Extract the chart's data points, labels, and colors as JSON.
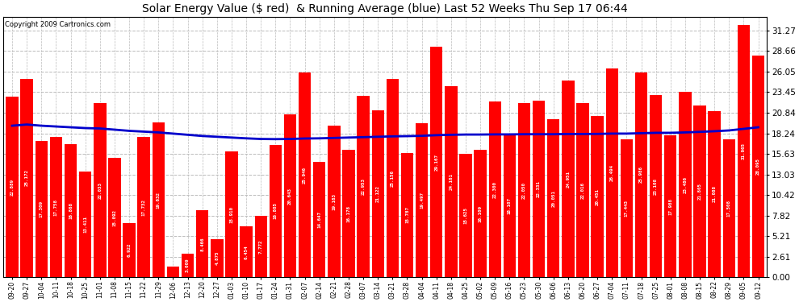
{
  "title": "Solar Energy Value ($ red)  & Running Average (blue) Last 52 Weeks Thu Sep 17 06:44",
  "copyright": "Copyright 2009 Cartronics.com",
  "bar_color": "#ff0000",
  "avg_line_color": "#0000cc",
  "background_color": "#ffffff",
  "plot_bg_color": "#ffffff",
  "grid_color": "#bbbbbb",
  "yticks": [
    0.0,
    2.61,
    5.21,
    7.82,
    10.42,
    13.03,
    15.63,
    18.24,
    20.84,
    23.45,
    26.05,
    28.66,
    31.27
  ],
  "xlabels": [
    "09-20",
    "09-27",
    "10-04",
    "10-11",
    "10-18",
    "10-25",
    "11-01",
    "11-08",
    "11-15",
    "11-22",
    "11-29",
    "12-06",
    "12-13",
    "12-20",
    "12-27",
    "01-03",
    "01-10",
    "01-17",
    "01-24",
    "01-31",
    "02-07",
    "02-14",
    "02-21",
    "02-28",
    "03-07",
    "03-14",
    "03-21",
    "03-28",
    "04-04",
    "04-11",
    "04-18",
    "04-25",
    "05-02",
    "05-09",
    "05-16",
    "05-23",
    "05-30",
    "06-06",
    "06-13",
    "06-20",
    "06-27",
    "07-04",
    "07-11",
    "07-18",
    "07-25",
    "08-01",
    "08-08",
    "08-15",
    "08-22",
    "08-29",
    "09-05",
    "09-12"
  ],
  "values": [
    22.889,
    25.172,
    17.309,
    17.758,
    16.868,
    13.411,
    22.033,
    15.092,
    6.922,
    17.732,
    19.632,
    1.369,
    3.009,
    8.466,
    4.875,
    15.91,
    6.454,
    7.772,
    16.805,
    20.643,
    25.946,
    14.647,
    19.163,
    16.178,
    22.953,
    21.122,
    25.156,
    15.787,
    19.497,
    29.167,
    24.161,
    15.625,
    16.109,
    22.3,
    18.107,
    22.05,
    22.331,
    20.051,
    24.951,
    22.016,
    20.451,
    26.494,
    17.443,
    25.986,
    23.108,
    17.988,
    23.486,
    21.805,
    21.088,
    17.508,
    31.965,
    28.095
  ],
  "running_avg": [
    19.2,
    19.35,
    19.2,
    19.1,
    19.0,
    18.9,
    18.85,
    18.7,
    18.55,
    18.45,
    18.35,
    18.2,
    18.05,
    17.9,
    17.8,
    17.7,
    17.6,
    17.52,
    17.5,
    17.52,
    17.58,
    17.6,
    17.65,
    17.7,
    17.75,
    17.8,
    17.85,
    17.88,
    17.92,
    18.0,
    18.05,
    18.08,
    18.08,
    18.1,
    18.1,
    18.12,
    18.12,
    18.12,
    18.15,
    18.15,
    18.16,
    18.2,
    18.2,
    18.25,
    18.3,
    18.3,
    18.35,
    18.42,
    18.5,
    18.6,
    18.8,
    19.0
  ],
  "ymax": 33.0,
  "figwidth": 9.9,
  "figheight": 3.75,
  "dpi": 100
}
